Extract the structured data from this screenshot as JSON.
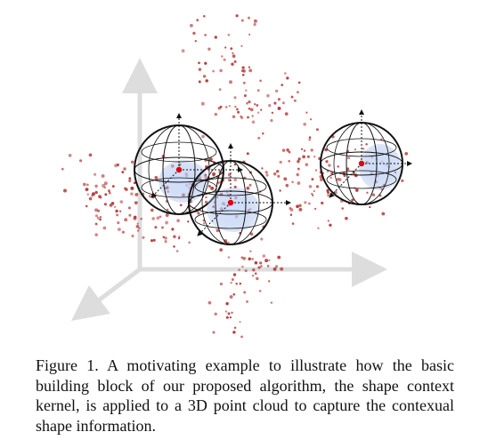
{
  "figure": {
    "caption": "Figure 1. A motivating example to illustrate how the basic building block of our proposed algorithm, the shape context kernel, is applied to a 3D point cloud to capture the contexual shape information.",
    "colors": {
      "axis": "#d8d8d8",
      "points": "#b83a3a",
      "sphere": "#111111",
      "kernel_center": "#e00000"
    },
    "elements": [
      "3d-axes",
      "point-cloud",
      "shape-context-kernel-spheres"
    ]
  }
}
